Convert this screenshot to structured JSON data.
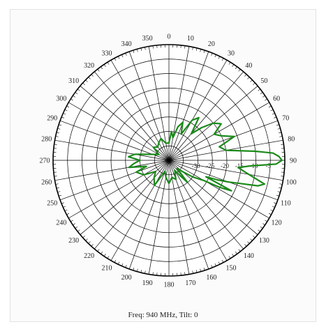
{
  "chart_data": {
    "type": "polar",
    "title": "",
    "caption": "Freq: 940 MHz, Tilt: 0",
    "angle_ticks": [
      "0",
      "10",
      "20",
      "30",
      "40",
      "50",
      "60",
      "70",
      "80",
      "90",
      "100",
      "110",
      "120",
      "130",
      "140",
      "150",
      "160",
      "170",
      "180",
      "190",
      "200",
      "210",
      "220",
      "230",
      "240",
      "250",
      "260",
      "270",
      "280",
      "290",
      "300",
      "310",
      "320",
      "330",
      "340",
      "350"
    ],
    "radial_tick_labels": [
      "-5",
      "-10",
      "-15",
      "-20",
      "-25",
      "-30"
    ],
    "radial_range_db": [
      -40,
      0
    ],
    "radial_ring_step_db": 5,
    "angle_direction": "clockwise from top",
    "grid": true,
    "series": [
      {
        "color": "#1a8a1a",
        "angles_deg": [
          0,
          5,
          10,
          15,
          20,
          25,
          30,
          35,
          40,
          45,
          50,
          55,
          60,
          65,
          70,
          75,
          80,
          84,
          86,
          88,
          90,
          92,
          94,
          96,
          100,
          104,
          106,
          108,
          110,
          112,
          114,
          116,
          118,
          120,
          125,
          130,
          135,
          140,
          145,
          150,
          160,
          170,
          180,
          190,
          200,
          210,
          220,
          230,
          240,
          250,
          255,
          260,
          265,
          270,
          275,
          280,
          285,
          290,
          300,
          310,
          320,
          330,
          340,
          350,
          360
        ],
        "gain_db": [
          -34,
          -30,
          -32,
          -28,
          -26,
          -30,
          -24,
          -22,
          -28,
          -24,
          -20,
          -18,
          -22,
          -20,
          -16,
          -22,
          -20,
          -10,
          -4,
          -2,
          -1,
          -3,
          -12,
          -16,
          -12,
          -6,
          -8,
          -14,
          -18,
          -22,
          -26,
          -16,
          -20,
          -26,
          -30,
          -34,
          -36,
          -30,
          -34,
          -36,
          -33,
          -34,
          -32,
          -34,
          -36,
          -30,
          -32,
          -34,
          -30,
          -28,
          -32,
          -26,
          -28,
          -30,
          -26,
          -28,
          -32,
          -34,
          -36,
          -33,
          -34,
          -33,
          -32,
          -34,
          -34
        ]
      }
    ]
  }
}
